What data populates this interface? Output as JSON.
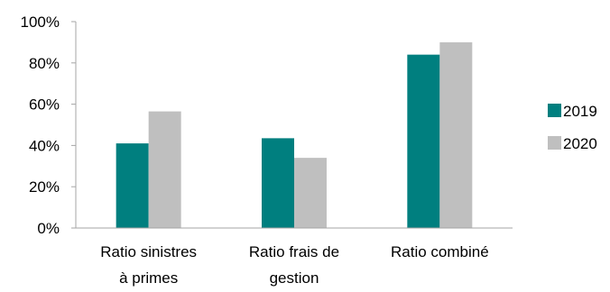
{
  "chart_data": {
    "type": "bar",
    "categories": [
      [
        "Ratio sinistres",
        "à primes"
      ],
      [
        "Ratio frais de",
        "gestion"
      ],
      [
        "Ratio combiné"
      ]
    ],
    "series": [
      {
        "name": "2019",
        "color": "#007F7F",
        "values": [
          41,
          43.5,
          84
        ]
      },
      {
        "name": "2020",
        "color": "#BFBFBF",
        "values": [
          56.5,
          34,
          90
        ]
      }
    ],
    "ylim": [
      0,
      100
    ],
    "yticks": [
      0,
      20,
      40,
      60,
      80,
      100
    ],
    "ytick_labels": [
      "0%",
      "20%",
      "40%",
      "60%",
      "80%",
      "100%"
    ],
    "grid": false,
    "legend_position": "right",
    "axis_color": "#A6A6A6"
  }
}
